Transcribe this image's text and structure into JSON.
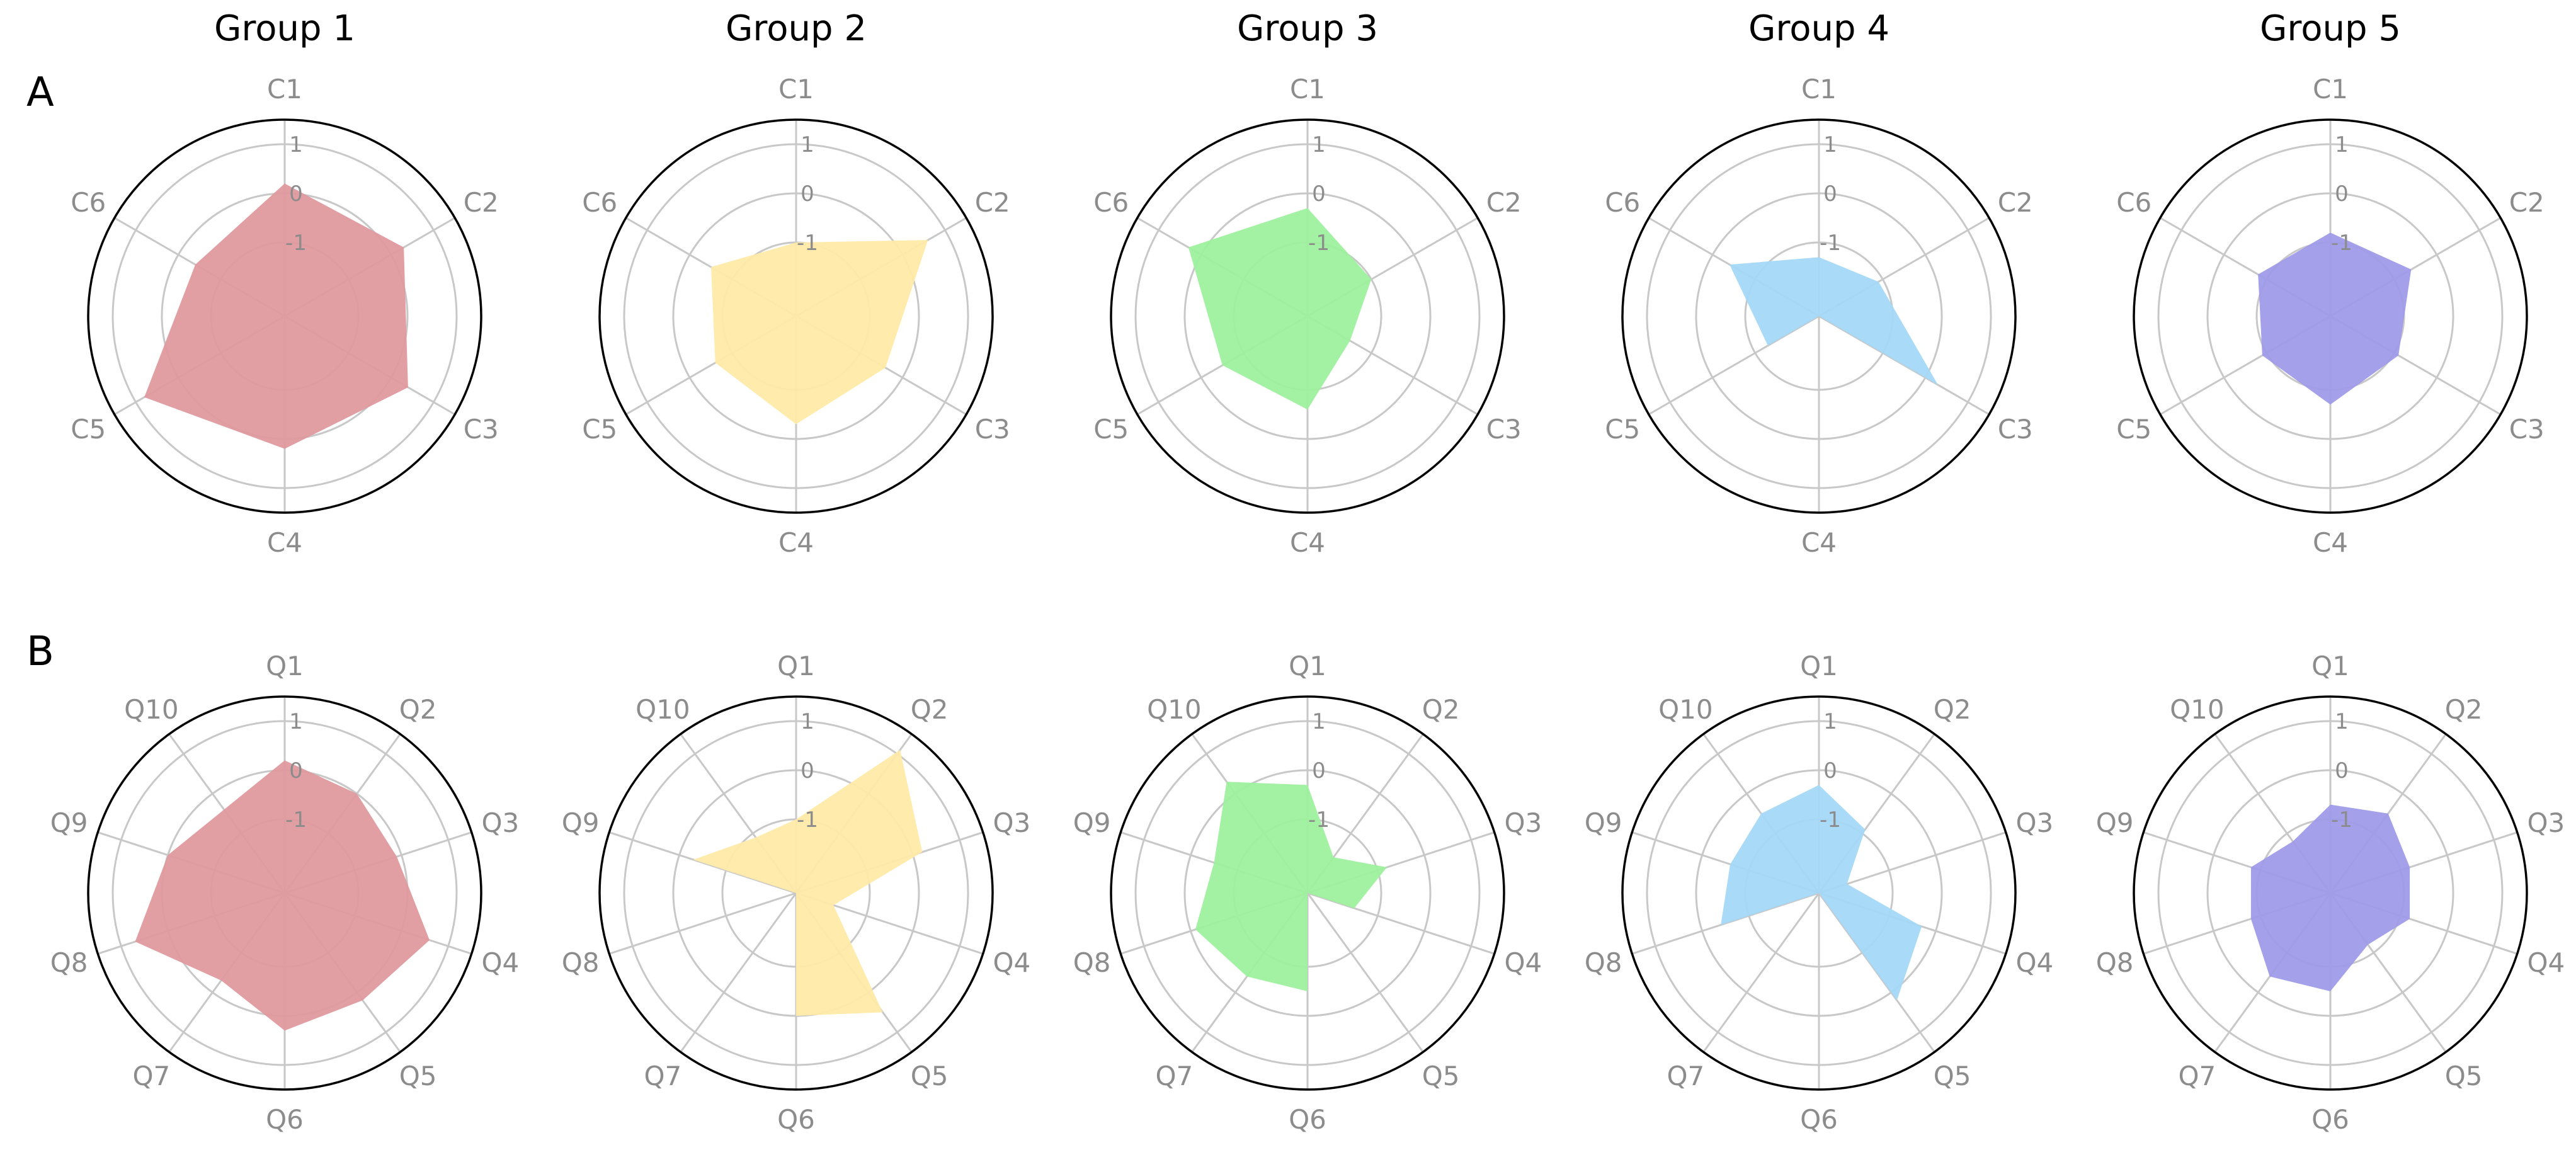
{
  "colors": [
    "#e09a9e",
    "#ffeaa6",
    "#9ef09e",
    "#a4d9f8",
    "#9f9be8"
  ],
  "group_titles": [
    "Group 1",
    "Group 2",
    "Group 3",
    "Group 4",
    "Group 5"
  ],
  "chart_data": [
    {
      "type": "radar",
      "panel": "A",
      "axes": [
        "C1",
        "C2",
        "C3",
        "C4",
        "C5",
        "C6"
      ],
      "rlim": [
        -2.5,
        1.5
      ],
      "rticks": [
        "1",
        "0",
        "-1"
      ],
      "series": [
        {
          "values": [
            0.2,
            0.3,
            0.4,
            0.2,
            0.8,
            -0.4
          ]
        },
        {
          "values": [
            -1.0,
            0.6,
            -0.4,
            -0.3,
            -0.6,
            -0.5
          ]
        },
        {
          "values": [
            -0.3,
            -1.0,
            -1.5,
            -0.6,
            -0.5,
            0.3
          ]
        },
        {
          "values": [
            -1.3,
            -1.1,
            0.3,
            -2.5,
            -1.3,
            -0.4
          ]
        },
        {
          "values": [
            -0.8,
            -0.6,
            -0.9,
            -0.7,
            -0.9,
            -0.8
          ]
        }
      ]
    },
    {
      "type": "radar",
      "panel": "B",
      "axes": [
        "Q1",
        "Q2",
        "Q3",
        "Q4",
        "Q5",
        "Q6",
        "Q7",
        "Q8",
        "Q9",
        "Q10"
      ],
      "rlim": [
        -2.5,
        1.5
      ],
      "rticks": [
        "1",
        "0",
        "-1"
      ],
      "series": [
        {
          "values": [
            0.2,
            0.0,
            -0.1,
            0.6,
            0.2,
            0.3,
            -0.3,
            0.7,
            0.0,
            -0.4
          ]
        },
        {
          "values": [
            -1.0,
            1.1,
            0.2,
            -1.7,
            0.5,
            0.0,
            -2.5,
            -2.5,
            -0.3,
            -1.1
          ]
        },
        {
          "values": [
            -0.3,
            -1.6,
            -0.8,
            -1.5,
            -2.5,
            -0.5,
            -0.4,
            -0.1,
            -0.5,
            0.3
          ]
        },
        {
          "values": [
            -0.3,
            -0.9,
            -1.9,
            -0.3,
            0.2,
            -2.5,
            -2.5,
            -0.4,
            -0.6,
            -0.5
          ]
        },
        {
          "values": [
            -0.7,
            -0.5,
            -0.8,
            -0.8,
            -1.2,
            -0.5,
            -0.4,
            -0.8,
            -0.8,
            -1.2
          ]
        }
      ]
    }
  ]
}
